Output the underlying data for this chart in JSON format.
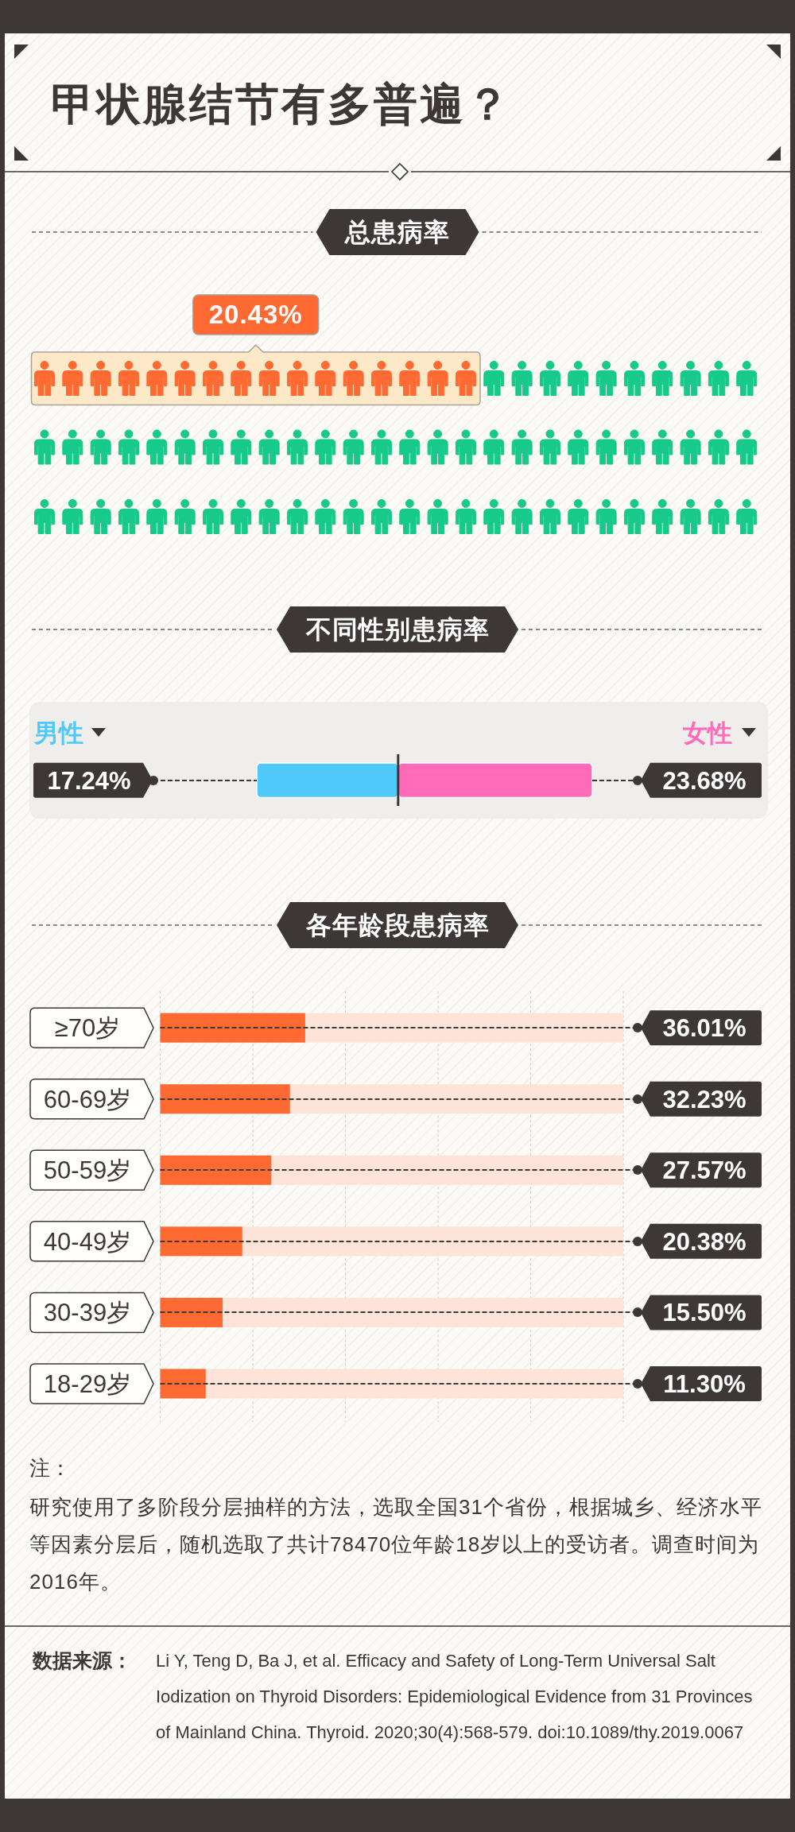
{
  "chart_data": [
    {
      "type": "other",
      "title": "甲状腺结节有多普遍？",
      "subtitle": "总患病率",
      "values": [
        20.43
      ],
      "value_labels": [
        "20.43%"
      ],
      "color": "#ff6a33"
    },
    {
      "type": "bar",
      "title": "不同性别患病率",
      "orientation": "horizontal",
      "stacked": true,
      "categories": [
        null
      ],
      "series": [
        {
          "name": "男性",
          "color": "#50c8fa",
          "values": [
            17.24
          ],
          "value_labels": [
            "17.24%"
          ]
        },
        {
          "name": "女性",
          "color": "#ff6bb8",
          "values": [
            23.68
          ],
          "value_labels": [
            "23.68%"
          ]
        }
      ],
      "ref_lines": [
        {
          "axis": "x",
          "value": 17.24,
          "color": "#3d3837"
        }
      ]
    },
    {
      "type": "bar",
      "title": "各年龄段患病率",
      "orientation": "horizontal",
      "categories": [
        "≥70岁",
        "60-69岁",
        "50-59岁",
        "40-49岁",
        "30-39岁",
        "18-29岁"
      ],
      "values": [
        36.01,
        32.23,
        27.57,
        20.38,
        15.5,
        11.3
      ],
      "value_labels": [
        "36.01%",
        "32.23%",
        "27.57%",
        "20.38%",
        "15.50%",
        "11.30%"
      ],
      "color": "#ff6a33",
      "xlim": [
        0,
        115
      ],
      "xticks": [
        {
          "value": 0,
          "label": null
        },
        {
          "value": 23,
          "label": null
        },
        {
          "value": 46,
          "label": null
        },
        {
          "value": 69,
          "label": null
        },
        {
          "value": 92,
          "label": null
        },
        {
          "value": 115,
          "label": null
        }
      ],
      "grid": "x",
      "annotations": [
        "注：",
        "研究使用了多阶段分层抽样的方法，选取全国31个省份，根据城乡、经济水平等因素分层后，随机选取了共计78470位年龄18岁以上的受访者。调查时间为2016年。",
        "数据来源：",
        "Li Y, Teng D, Ba J, et al. Efficacy and Safety of Long-Term Universal Salt Iodization on Thyroid Disorders: Epidemiological Evidence from 31 Provinces of Mainland China. Thyroid. 2020;30(4):568-579. doi:10.1089/thy.2019.0067"
      ]
    }
  ]
}
